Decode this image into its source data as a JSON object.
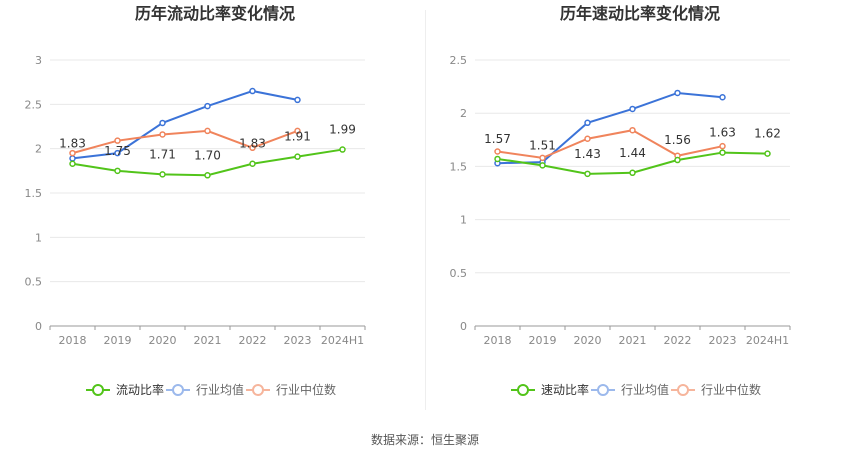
{
  "charts": [
    {
      "title": "历年流动比率变化情况",
      "categories": [
        "2018",
        "2019",
        "2020",
        "2021",
        "2022",
        "2023",
        "2024H1"
      ],
      "ylim": [
        0,
        3
      ],
      "yticks": [
        "0",
        "0.5",
        "1",
        "1.5",
        "2",
        "2.5",
        "3"
      ],
      "series": [
        {
          "name": "流动比率",
          "color": "#52c41a",
          "values": [
            1.83,
            1.75,
            1.71,
            1.7,
            1.83,
            1.91,
            1.99
          ],
          "labels": [
            "1.83",
            "1.75",
            "1.71",
            "1.70",
            "1.83",
            "1.91",
            "1.99"
          ]
        },
        {
          "name": "行业均值",
          "color": "#3b73d8",
          "values": [
            1.89,
            1.95,
            2.29,
            2.48,
            2.65,
            2.55,
            null
          ]
        },
        {
          "name": "行业中位数",
          "color": "#f0845c",
          "values": [
            1.95,
            2.09,
            2.16,
            2.2,
            2.01,
            2.2,
            null
          ]
        }
      ]
    },
    {
      "title": "历年速动比率变化情况",
      "categories": [
        "2018",
        "2019",
        "2020",
        "2021",
        "2022",
        "2023",
        "2024H1"
      ],
      "ylim": [
        0,
        2.5
      ],
      "yticks": [
        "0",
        "0.5",
        "1",
        "1.5",
        "2",
        "2.5"
      ],
      "series": [
        {
          "name": "速动比率",
          "color": "#52c41a",
          "values": [
            1.57,
            1.51,
            1.43,
            1.44,
            1.56,
            1.63,
            1.62
          ],
          "labels": [
            "1.57",
            "1.51",
            "1.43",
            "1.44",
            "1.56",
            "1.63",
            "1.62"
          ]
        },
        {
          "name": "行业均值",
          "color": "#3b73d8",
          "values": [
            1.53,
            1.54,
            1.91,
            2.04,
            2.19,
            2.15,
            null
          ]
        },
        {
          "name": "行业中位数",
          "color": "#f0845c",
          "values": [
            1.64,
            1.58,
            1.76,
            1.84,
            1.6,
            1.69,
            null
          ]
        }
      ]
    }
  ],
  "footer": "数据来源：恒生聚源"
}
